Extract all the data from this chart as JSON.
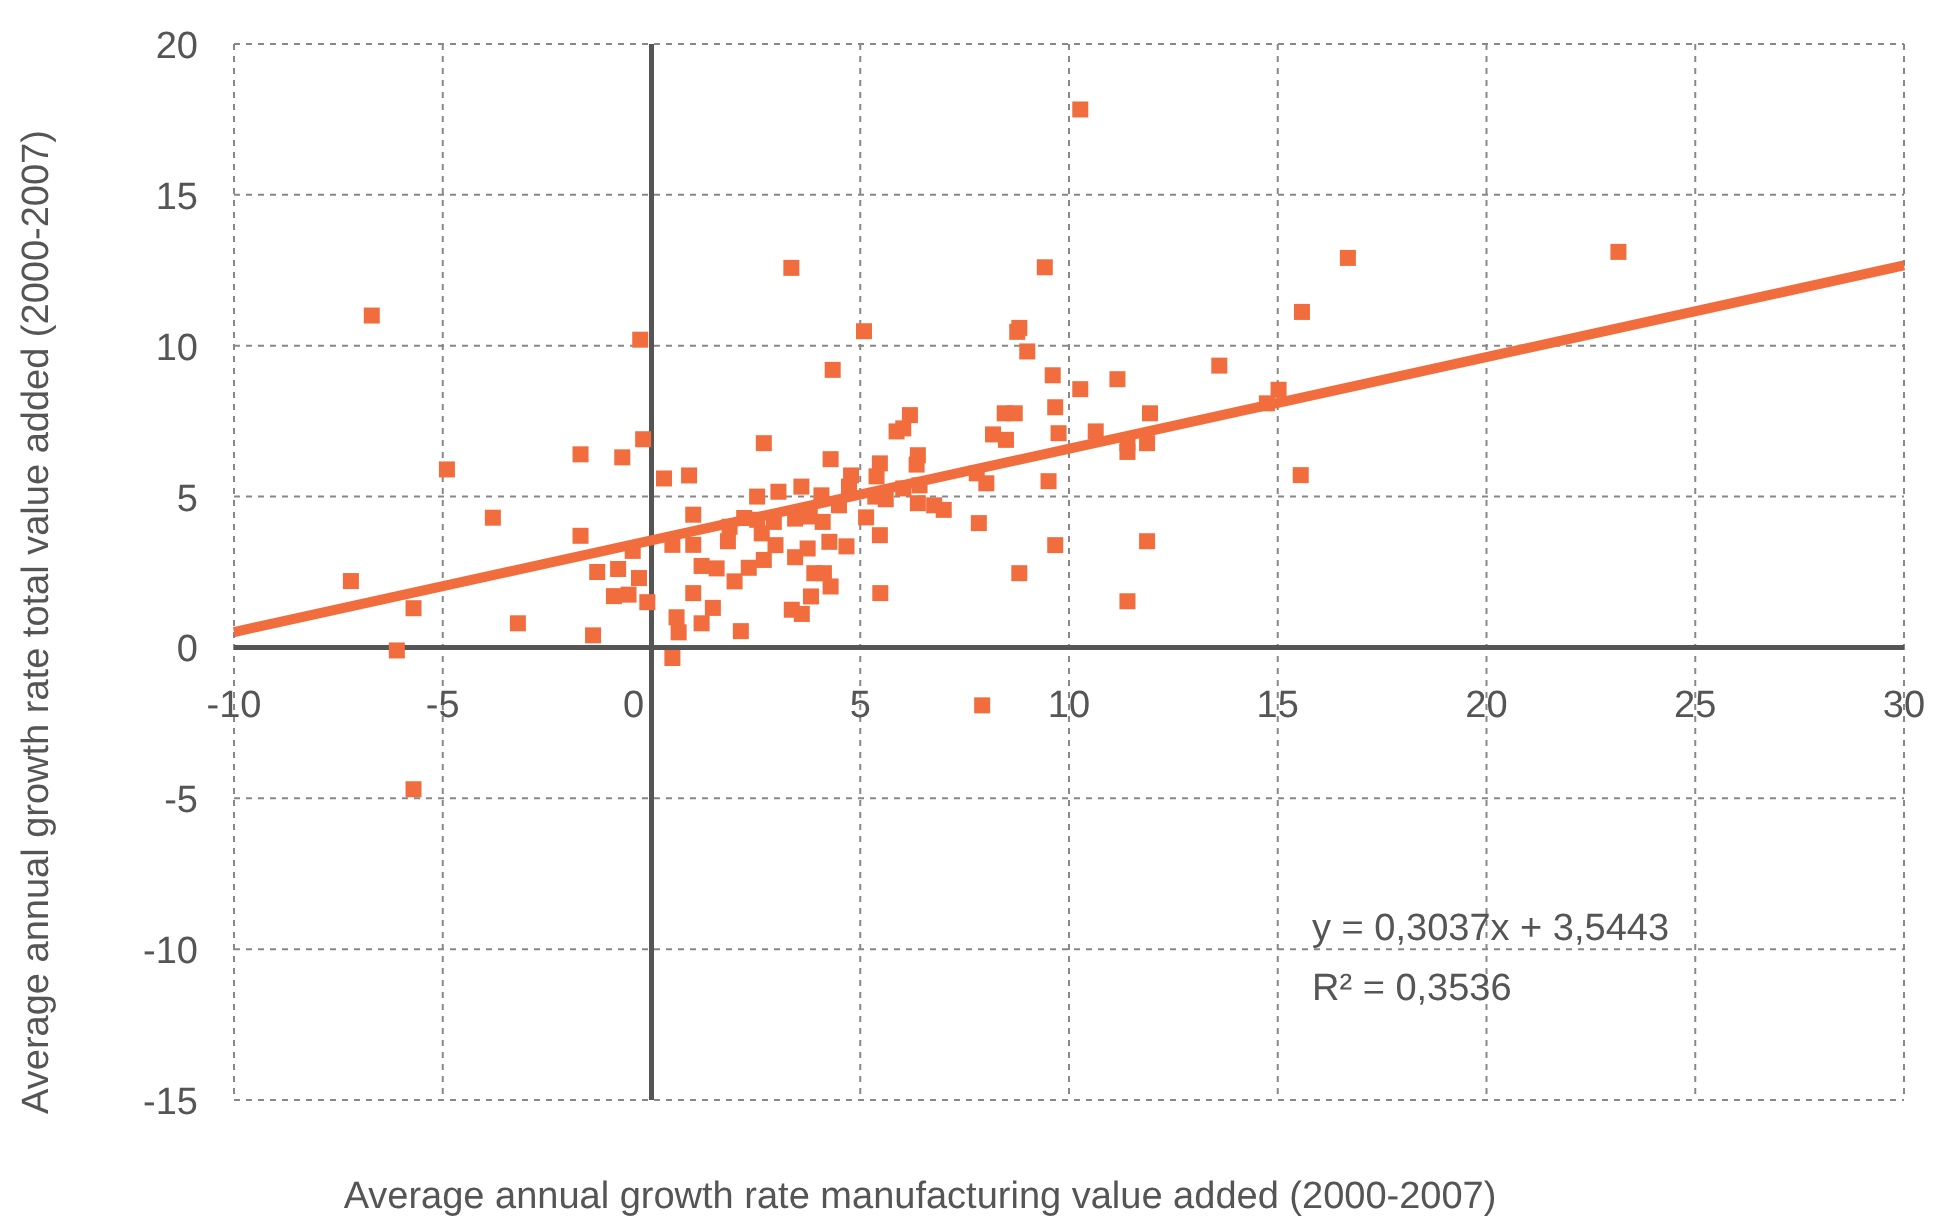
{
  "chart_data": {
    "type": "scatter",
    "xlabel": "Average annual growth rate manufacturing value added (2000-2007)",
    "ylabel": "Average annual growth rate total value added (2000-2007)",
    "xlim": [
      -10,
      30
    ],
    "xticks": [
      -10,
      -5,
      0,
      5,
      10,
      15,
      20,
      25,
      30
    ],
    "ylim": [
      -15,
      20
    ],
    "yticks": [
      -15,
      -10,
      -5,
      0,
      5,
      10,
      15,
      20
    ],
    "grid": true,
    "annotations": [
      "y = 0,3037x + 3,5443",
      "R² = 0,3536"
    ],
    "series": [
      {
        "color": "#f26d3d",
        "marker": "square",
        "x": [
          -7.2,
          -6.7,
          -6.1,
          -5.7,
          -5.7,
          -4.9,
          -3.8,
          -3.2,
          -1.7,
          -1.7,
          -1.4,
          -1.3,
          -0.7,
          -0.45,
          -0.9,
          -0.8,
          -0.55,
          -0.3,
          -0.27,
          -0.2,
          -0.1,
          0.3,
          0.9,
          0.5,
          1.0,
          1.0,
          0.6,
          0.65,
          0.5,
          1.2,
          1.2,
          1.0,
          4.34,
          6.19,
          6.03,
          5.87,
          2.69,
          4.29,
          6.38,
          5.47,
          6.35,
          4.78,
          2.53,
          3.04,
          3.59,
          4.07,
          4.73,
          5.39,
          5.36,
          5.61,
          6.03,
          6.42,
          6.77,
          6.38,
          7.0,
          1.87,
          2.22,
          2.53,
          2.93,
          2.64,
          3.44,
          3.79,
          4.1,
          4.49,
          5.14,
          5.47,
          1.83,
          2.97,
          3.74,
          4.26,
          4.67,
          1.56,
          2.33,
          2.69,
          3.44,
          3.9,
          4.13,
          1.99,
          4.29,
          1.47,
          3.82,
          5.48,
          3.36,
          3.6,
          2.14,
          10.27,
          9.42,
          8.81,
          8.76,
          9.0,
          9.61,
          10.27,
          11.16,
          13.6,
          8.46,
          8.7,
          9.67,
          8.18,
          8.49,
          9.75,
          10.64,
          11.94,
          11.4,
          11.4,
          11.87,
          7.79,
          8.02,
          9.51,
          7.84,
          9.67,
          11.87,
          8.81,
          11.4,
          7.92,
          16.68,
          23.16,
          15.58,
          15.02,
          14.74,
          15.55,
          3.35,
          5.09
        ],
        "values": [
          2.2,
          11.0,
          -0.1,
          1.3,
          -4.7,
          5.9,
          4.3,
          0.8,
          6.4,
          3.7,
          0.4,
          2.5,
          6.3,
          3.2,
          1.7,
          2.6,
          1.75,
          2.3,
          10.2,
          6.9,
          1.5,
          5.6,
          5.7,
          3.4,
          3.4,
          1.8,
          1.0,
          0.5,
          -0.35,
          2.7,
          0.8,
          4.4,
          9.2,
          7.7,
          7.26,
          7.16,
          6.77,
          6.24,
          6.37,
          6.1,
          6.06,
          5.7,
          5.0,
          5.16,
          5.33,
          5.04,
          5.33,
          5.67,
          5.0,
          4.91,
          5.27,
          5.37,
          4.71,
          4.78,
          4.56,
          4.0,
          4.29,
          4.23,
          4.16,
          3.78,
          4.27,
          4.34,
          4.16,
          4.71,
          4.31,
          3.72,
          3.52,
          3.39,
          3.28,
          3.5,
          3.35,
          2.62,
          2.64,
          2.9,
          2.99,
          2.46,
          2.46,
          2.19,
          2.02,
          1.31,
          1.69,
          1.8,
          1.25,
          1.11,
          0.54,
          17.83,
          12.6,
          10.59,
          10.46,
          9.81,
          9.02,
          8.56,
          8.89,
          9.34,
          7.76,
          7.76,
          7.96,
          7.06,
          6.88,
          7.1,
          7.16,
          7.76,
          6.77,
          6.48,
          6.77,
          5.77,
          5.44,
          5.51,
          4.12,
          3.39,
          3.52,
          2.46,
          1.53,
          -1.92,
          12.91,
          13.11,
          11.12,
          8.54,
          8.09,
          5.71,
          12.58,
          10.48
        ]
      },
      {
        "type": "line",
        "marker": "none",
        "color": "#f26d3d",
        "x": [
          -10,
          30
        ],
        "values": [
          0.51,
          12.66
        ]
      }
    ]
  }
}
